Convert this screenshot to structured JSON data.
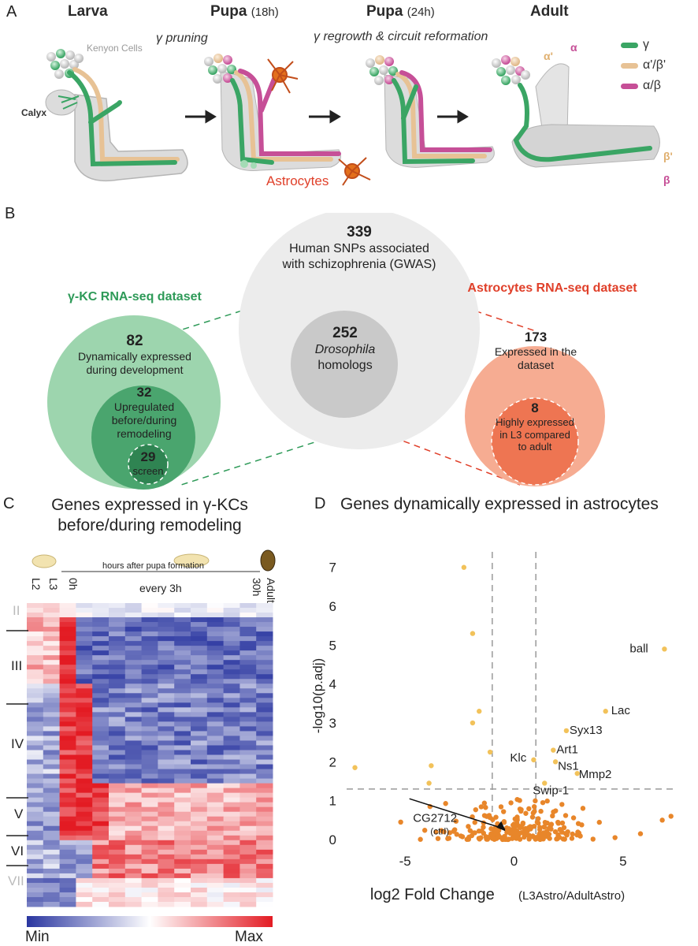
{
  "panel_a": {
    "letter": "A",
    "stages": [
      {
        "title": "Larva",
        "sub": ""
      },
      {
        "title": "Pupa",
        "sub": "(18h)"
      },
      {
        "title": "Pupa",
        "sub": "(24h)"
      },
      {
        "title": "Adult",
        "sub": ""
      }
    ],
    "caption_pruning": "γ pruning",
    "caption_regrowth": "γ regrowth & circuit reformation",
    "kenyon_cells": "Kenyon Cells",
    "calyx": "Calyx",
    "astrocytes": "Astrocytes",
    "lobe_alpha_prime": "α'",
    "lobe_alpha": "α",
    "lobe_beta_prime": "β'",
    "lobe_beta": "β",
    "legend": [
      {
        "label": "γ",
        "color": "#3aa564"
      },
      {
        "label": "α'/β'",
        "color": "#e7c295"
      },
      {
        "label": "α/β",
        "color": "#c64f97"
      }
    ]
  },
  "panel_b": {
    "letter": "B",
    "center": {
      "number": "339",
      "text": "Human SNPs associated with schizophrenia (GWAS)"
    },
    "inner": {
      "number": "252",
      "text_italic": "Drosophila",
      "text": "homologs"
    },
    "left_title": "γ-KC RNA-seq dataset",
    "left_outer": {
      "number": "82",
      "text": "Dynamically expressed during development"
    },
    "left_mid": {
      "number": "32",
      "text": "Upregulated before/during remodeling"
    },
    "left_inner": {
      "number": "29",
      "text": "screen"
    },
    "right_title": "Astrocytes RNA-seq dataset",
    "right_outer": {
      "number": "173",
      "text": "Expressed in the dataset"
    },
    "right_inner": {
      "number": "8",
      "text": "Highly expressed in L3 compared to adult"
    }
  },
  "panel_c": {
    "letter": "C",
    "title": "Genes expressed in γ-KCs before/during remodeling",
    "hours_label": "hours after pupa formation",
    "every_label": "every 3h",
    "col_labels": [
      "L2",
      "L3",
      "0h",
      "30h",
      "Adult"
    ],
    "clusters": [
      "II",
      "III",
      "IV",
      "V",
      "VI",
      "VII"
    ],
    "scale_min": "Min",
    "scale_max": "Max"
  },
  "panel_d": {
    "letter": "D",
    "title": "Genes dynamically expressed in astrocytes"
  },
  "chart_data": [
    {
      "type": "heatmap",
      "title": "Genes expressed in γ-KCs before/during remodeling",
      "rows": 64,
      "columns": 15,
      "color_scale": {
        "min_label": "Min",
        "max_label": "Max",
        "min_color": "#2a36a0",
        "mid_color": "#ffffff",
        "max_color": "#e31b23"
      },
      "row_clusters": [
        "II",
        "III",
        "IV",
        "V",
        "VI",
        "VII"
      ],
      "column_labels": [
        "L2",
        "L3",
        "0h",
        "every 3h",
        "30h",
        "Adult"
      ]
    },
    {
      "type": "scatter",
      "title": "Genes dynamically expressed in astrocytes",
      "xlabel": "log2 Fold Change",
      "xlabel_sub": "(L3Astro/AdultAstro)",
      "ylabel": "-log10(p.adj)",
      "xlim": [
        -7.5,
        7.5
      ],
      "ylim": [
        0,
        7.4
      ],
      "x_ticks": [
        -5,
        0,
        5
      ],
      "y_ticks": [
        0,
        1,
        2,
        3,
        4,
        5,
        6,
        7
      ],
      "threshold_x": [
        -1,
        1
      ],
      "threshold_y": 1.3,
      "point_color": "#e8862a",
      "labeled_points": [
        {
          "label": "ball",
          "x": 6.9,
          "y": 4.9
        },
        {
          "label": "Lac",
          "x": 4.2,
          "y": 3.3
        },
        {
          "label": "Syx13",
          "x": 2.4,
          "y": 2.8
        },
        {
          "label": "Art1",
          "x": 1.8,
          "y": 2.3
        },
        {
          "label": "Ns1",
          "x": 1.9,
          "y": 2.0
        },
        {
          "label": "Mmp2",
          "x": 2.9,
          "y": 1.7
        },
        {
          "label": "Klc",
          "x": 0.9,
          "y": 2.05
        },
        {
          "label": "Swip-1",
          "x": 1.4,
          "y": 1.45
        },
        {
          "label": "CG2712",
          "label_sub": "(ctrl)",
          "x": -0.3,
          "y": 0.25
        }
      ],
      "other_points": [
        {
          "x": -2.3,
          "y": 7.0
        },
        {
          "x": -1.9,
          "y": 5.3
        },
        {
          "x": -1.6,
          "y": 3.3
        },
        {
          "x": -1.9,
          "y": 3.0
        },
        {
          "x": -1.1,
          "y": 2.25
        },
        {
          "x": -3.8,
          "y": 1.9
        },
        {
          "x": -7.3,
          "y": 1.85
        },
        {
          "x": -3.9,
          "y": 1.45
        },
        {
          "x": 7.2,
          "y": 0.6
        },
        {
          "x": 6.8,
          "y": 0.5
        },
        {
          "x": 5.8,
          "y": 0.15
        },
        {
          "x": -5.2,
          "y": 0.45
        }
      ]
    }
  ]
}
